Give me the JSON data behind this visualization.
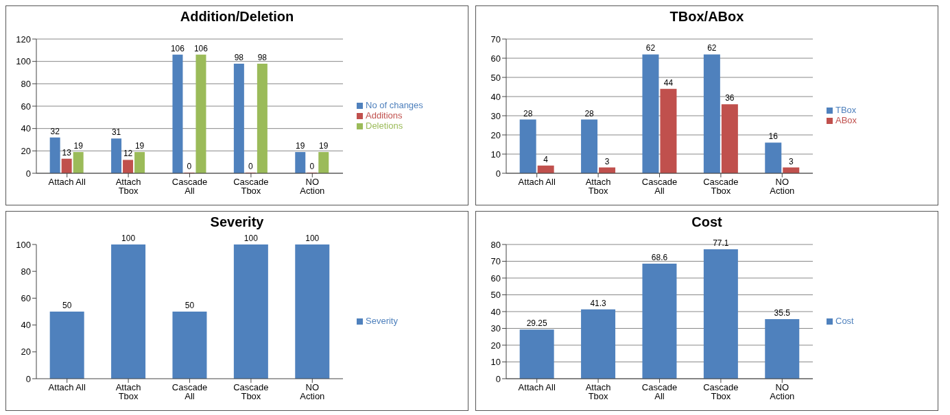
{
  "chart_data": [
    {
      "type": "bar",
      "title": "Addition/Deletion",
      "categories": [
        "Attach All",
        "Attach Tbox",
        "Cascade All",
        "Cascade Tbox",
        "NO Action"
      ],
      "series": [
        {
          "name": "No of changes",
          "color": "#4f81bd",
          "values": [
            32,
            31,
            106,
            98,
            19
          ]
        },
        {
          "name": "Additions",
          "color": "#c0504d",
          "values": [
            13,
            12,
            0,
            0,
            0
          ]
        },
        {
          "name": "Deletions",
          "color": "#9bbb59",
          "values": [
            19,
            19,
            106,
            98,
            19
          ]
        }
      ],
      "ylim": [
        0,
        120
      ],
      "yticks": [
        0,
        20,
        40,
        60,
        80,
        100,
        120
      ],
      "grid": "y",
      "legend": "right",
      "data_labels": true
    },
    {
      "type": "bar",
      "title": "TBox/ABox",
      "categories": [
        "Attach All",
        "Attach Tbox",
        "Cascade All",
        "Cascade Tbox",
        "NO Action"
      ],
      "series": [
        {
          "name": "TBox",
          "color": "#4f81bd",
          "values": [
            28,
            28,
            62,
            62,
            16
          ]
        },
        {
          "name": "ABox",
          "color": "#c0504d",
          "values": [
            4,
            3,
            44,
            36,
            3
          ]
        }
      ],
      "ylim": [
        0,
        70
      ],
      "yticks": [
        0,
        10,
        20,
        30,
        40,
        50,
        60,
        70
      ],
      "grid": "y",
      "legend": "right",
      "data_labels": true
    },
    {
      "type": "bar",
      "title": "Severity",
      "categories": [
        "Attach All",
        "Attach Tbox",
        "Cascade All",
        "Cascade Tbox",
        "NO Action"
      ],
      "series": [
        {
          "name": "Severity",
          "color": "#4f81bd",
          "values": [
            50,
            100,
            50,
            100,
            100
          ]
        }
      ],
      "ylim": [
        0,
        100
      ],
      "yticks": [
        0,
        20,
        40,
        60,
        80,
        100
      ],
      "grid": false,
      "legend": "right",
      "data_labels": true
    },
    {
      "type": "bar",
      "title": "Cost",
      "categories": [
        "Attach All",
        "Attach Tbox",
        "Cascade All",
        "Cascade Tbox",
        "NO Action"
      ],
      "series": [
        {
          "name": "Cost",
          "color": "#4f81bd",
          "values": [
            29.25,
            41.3,
            68.6,
            77.1,
            35.5
          ]
        }
      ],
      "ylim": [
        0,
        80
      ],
      "yticks": [
        0,
        10,
        20,
        30,
        40,
        50,
        60,
        70,
        80
      ],
      "grid": "y",
      "legend": "right",
      "data_labels": true
    }
  ]
}
